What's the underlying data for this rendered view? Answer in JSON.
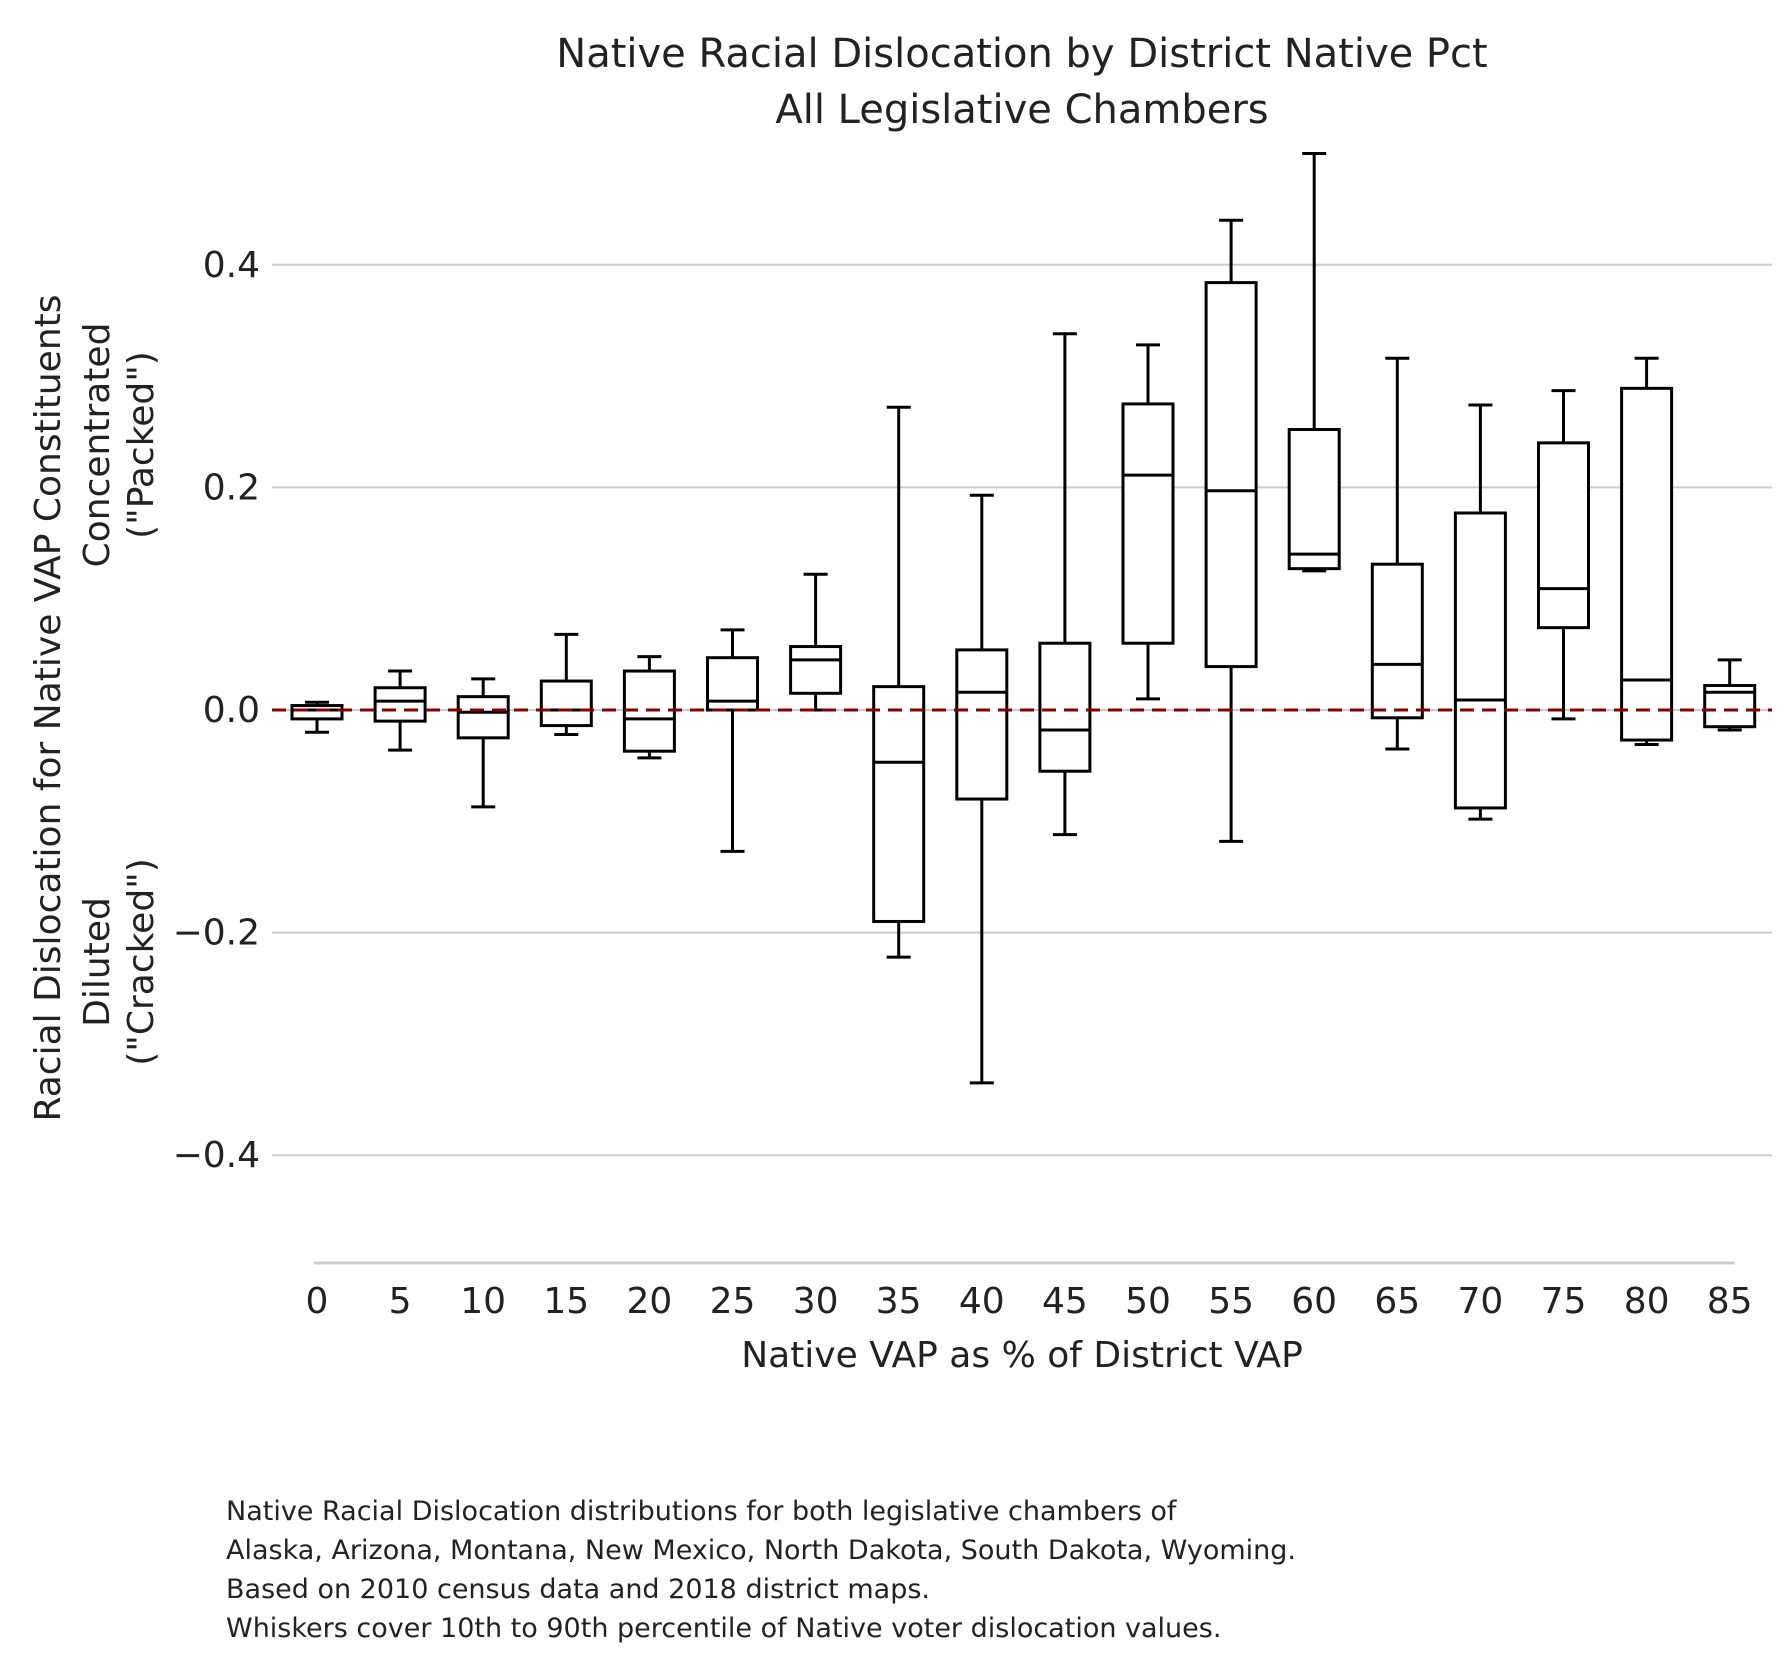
{
  "chart_data": {
    "type": "box",
    "title": [
      "Native Racial Dislocation by District Native Pct",
      "All Legislative Chambers"
    ],
    "xlabel": "Native VAP as % of District VAP",
    "ylabel": [
      "Racial Dislocation for Native VAP Constituents",
      "Concentrated",
      "(\"Packed\")",
      "Diluted",
      "(\"Cracked\")"
    ],
    "ylim": [
      -0.5,
      0.5
    ],
    "yticks": [
      -0.4,
      -0.2,
      0.0,
      0.2,
      0.4
    ],
    "ytick_labels": [
      "−0.4",
      "−0.2",
      "0.0",
      "0.2",
      "0.4"
    ],
    "categories": [
      "0",
      "5",
      "10",
      "15",
      "20",
      "25",
      "30",
      "35",
      "40",
      "45",
      "50",
      "55",
      "60",
      "65",
      "70",
      "75",
      "80",
      "85"
    ],
    "reference_line": {
      "y": 0.0,
      "color": "#8b0000",
      "style": "dashed"
    },
    "grid": "horizontal",
    "boxes": [
      {
        "category": "0",
        "whislo": -0.02,
        "q1": -0.008,
        "med": 0.0,
        "q3": 0.004,
        "whishi": 0.007
      },
      {
        "category": "5",
        "whislo": -0.036,
        "q1": -0.01,
        "med": 0.008,
        "q3": 0.02,
        "whishi": 0.035
      },
      {
        "category": "10",
        "whislo": -0.087,
        "q1": -0.025,
        "med": -0.002,
        "q3": 0.012,
        "whishi": 0.028
      },
      {
        "category": "15",
        "whislo": -0.022,
        "q1": -0.014,
        "med": 0.0,
        "q3": 0.026,
        "whishi": 0.068
      },
      {
        "category": "20",
        "whislo": -0.043,
        "q1": -0.037,
        "med": -0.008,
        "q3": 0.035,
        "whishi": 0.048
      },
      {
        "category": "25",
        "whislo": -0.127,
        "q1": 0.0,
        "med": 0.008,
        "q3": 0.047,
        "whishi": 0.072
      },
      {
        "category": "30",
        "whislo": 0.0,
        "q1": 0.015,
        "med": 0.045,
        "q3": 0.057,
        "whishi": 0.122
      },
      {
        "category": "35",
        "whislo": -0.222,
        "q1": -0.19,
        "med": -0.047,
        "q3": 0.021,
        "whishi": 0.272
      },
      {
        "category": "40",
        "whislo": -0.335,
        "q1": -0.08,
        "med": 0.016,
        "q3": 0.054,
        "whishi": 0.193
      },
      {
        "category": "45",
        "whislo": -0.112,
        "q1": -0.055,
        "med": -0.018,
        "q3": 0.06,
        "whishi": 0.338
      },
      {
        "category": "50",
        "whislo": 0.01,
        "q1": 0.06,
        "med": 0.211,
        "q3": 0.275,
        "whishi": 0.328
      },
      {
        "category": "55",
        "whislo": -0.118,
        "q1": 0.039,
        "med": 0.197,
        "q3": 0.384,
        "whishi": 0.44
      },
      {
        "category": "60",
        "whislo": 0.125,
        "q1": 0.127,
        "med": 0.14,
        "q3": 0.252,
        "whishi": 0.5
      },
      {
        "category": "65",
        "whislo": -0.035,
        "q1": -0.007,
        "med": 0.041,
        "q3": 0.131,
        "whishi": 0.316
      },
      {
        "category": "70",
        "whislo": -0.098,
        "q1": -0.088,
        "med": 0.009,
        "q3": 0.177,
        "whishi": 0.274
      },
      {
        "category": "75",
        "whislo": -0.008,
        "q1": 0.074,
        "med": 0.109,
        "q3": 0.24,
        "whishi": 0.287
      },
      {
        "category": "80",
        "whislo": -0.031,
        "q1": -0.027,
        "med": 0.027,
        "q3": 0.289,
        "whishi": 0.316
      },
      {
        "category": "85",
        "whislo": -0.018,
        "q1": -0.015,
        "med": 0.016,
        "q3": 0.022,
        "whishi": 0.045
      }
    ]
  },
  "caption": [
    "Native Racial Dislocation distributions for both legislative chambers of",
    "Alaska, Arizona, Montana, New Mexico, North Dakota, South Dakota, Wyoming.",
    "Based on 2010 census data and 2018 district maps.",
    "Whiskers cover 10th to 90th percentile of Native voter dislocation values."
  ]
}
